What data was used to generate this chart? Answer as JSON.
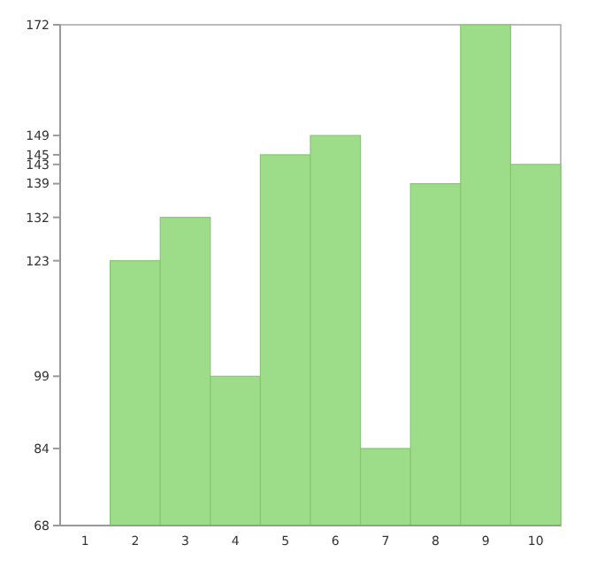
{
  "chart_data": {
    "type": "bar",
    "categories": [
      "1",
      "2",
      "3",
      "4",
      "5",
      "6",
      "7",
      "8",
      "9",
      "10"
    ],
    "values": [
      68,
      123,
      132,
      99,
      145,
      149,
      84,
      139,
      172,
      143
    ],
    "color": "#9ddc88",
    "ylim": [
      68,
      172
    ],
    "yticks": [
      68,
      84,
      99,
      123,
      132,
      139,
      143,
      145,
      149,
      172
    ]
  }
}
